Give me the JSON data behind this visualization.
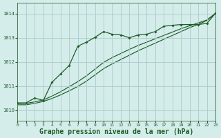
{
  "bg_color": "#d4ecea",
  "grid_color": "#a8ccc8",
  "line_color": "#1e5c28",
  "xlabel": "Graphe pression niveau de la mer (hPa)",
  "xlabel_fontsize": 7.0,
  "xlim": [
    0,
    23
  ],
  "ylim": [
    1009.55,
    1014.45
  ],
  "yticks": [
    1010,
    1011,
    1012,
    1013,
    1014
  ],
  "xticks": [
    0,
    1,
    2,
    3,
    4,
    5,
    6,
    7,
    8,
    9,
    10,
    11,
    12,
    13,
    14,
    15,
    16,
    17,
    18,
    19,
    20,
    21,
    22,
    23
  ],
  "series_main_x": [
    0,
    1,
    2,
    3,
    4,
    5,
    6,
    7,
    8,
    9,
    10,
    11,
    12,
    13,
    14,
    15,
    16,
    17,
    18,
    19,
    20,
    21,
    22,
    23
  ],
  "series_main_y": [
    1010.3,
    1010.3,
    1010.5,
    1010.4,
    1011.15,
    1011.5,
    1011.85,
    1012.65,
    1012.82,
    1013.02,
    1013.26,
    1013.15,
    1013.12,
    1013.0,
    1013.12,
    1013.15,
    1013.26,
    1013.48,
    1013.52,
    1013.55,
    1013.55,
    1013.55,
    1013.6,
    1014.02
  ],
  "series_smooth1_x": [
    0,
    1,
    2,
    3,
    4,
    5,
    6,
    7,
    8,
    9,
    10,
    11,
    12,
    13,
    14,
    15,
    16,
    17,
    18,
    19,
    20,
    21,
    22,
    23
  ],
  "series_smooth1_y": [
    1010.27,
    1010.28,
    1010.34,
    1010.42,
    1010.58,
    1010.76,
    1010.97,
    1011.18,
    1011.42,
    1011.7,
    1011.98,
    1012.18,
    1012.35,
    1012.52,
    1012.68,
    1012.82,
    1012.96,
    1013.1,
    1013.24,
    1013.38,
    1013.5,
    1013.62,
    1013.74,
    1014.02
  ],
  "series_smooth2_x": [
    0,
    1,
    2,
    3,
    4,
    5,
    6,
    7,
    8,
    9,
    10,
    11,
    12,
    13,
    14,
    15,
    16,
    17,
    18,
    19,
    20,
    21,
    22,
    23
  ],
  "series_smooth2_y": [
    1010.22,
    1010.22,
    1010.28,
    1010.36,
    1010.48,
    1010.63,
    1010.8,
    1010.98,
    1011.2,
    1011.46,
    1011.72,
    1011.92,
    1012.1,
    1012.28,
    1012.46,
    1012.62,
    1012.78,
    1012.94,
    1013.1,
    1013.26,
    1013.42,
    1013.56,
    1013.72,
    1014.02
  ]
}
